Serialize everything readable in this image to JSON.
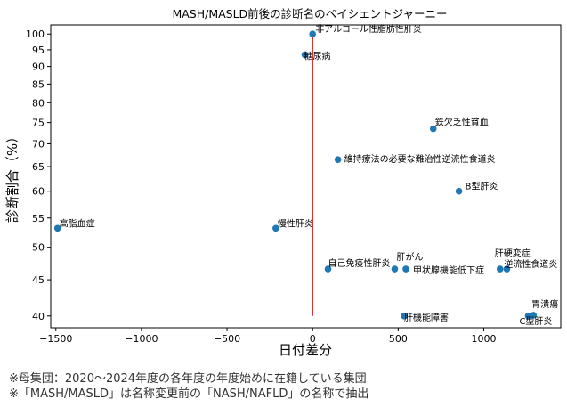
{
  "chart_data": {
    "type": "scatter",
    "title": "MASH/MASLD前後の診断名のペイシェントジャーニー",
    "xlabel": "日付差分",
    "ylabel": "診断割合（%）",
    "xlim": [
      -1530,
      1450
    ],
    "ylim": [
      38.5,
      103
    ],
    "y_scale": "log",
    "xticks": [
      -1500,
      -1000,
      -500,
      0,
      500,
      1000
    ],
    "yticks": [
      40,
      45,
      50,
      55,
      60,
      65,
      70,
      75,
      80,
      85,
      90,
      95,
      100
    ],
    "reference_line": {
      "x": 0,
      "y_from": 40,
      "y_to": 100,
      "color": "#d62728"
    },
    "grid": false,
    "point_color": "#1f77b4",
    "points": [
      {
        "label": "非アルコール性脂肪性肝炎",
        "x": 0,
        "y": 100
      },
      {
        "label": "糖尿病",
        "x": -45,
        "y": 93.5
      },
      {
        "label": "鉄欠乏性貧血",
        "x": 705,
        "y": 73.5
      },
      {
        "label": "維持療法の必要な難治性逆流性食道炎",
        "x": 148,
        "y": 66.5
      },
      {
        "label": "B型肝炎",
        "x": 855,
        "y": 60
      },
      {
        "label": "高脂血症",
        "x": -1490,
        "y": 53.2
      },
      {
        "label": "慢性肝炎",
        "x": -215,
        "y": 53.2
      },
      {
        "label": "自己免疫性肝炎",
        "x": 90,
        "y": 46.6
      },
      {
        "label": "肝がん",
        "x": 480,
        "y": 46.6
      },
      {
        "label": "甲状腺機能低下症",
        "x": 545,
        "y": 46.6
      },
      {
        "label": "肝硬変症",
        "x": 1095,
        "y": 46.6
      },
      {
        "label": "逆流性食道炎",
        "x": 1135,
        "y": 46.6
      },
      {
        "label": "胃潰瘍",
        "x": 1290,
        "y": 40.1
      },
      {
        "label": "C型肝炎",
        "x": 1260,
        "y": 40
      },
      {
        "label": "肝機能障害",
        "x": 535,
        "y": 40
      }
    ]
  },
  "notes": [
    "※母集団：2020～2024年度の各年度の年度始めに在籍している集団",
    "※「MASH/MASLD」は名称変更前の「NASH/NAFLD」の名称で抽出"
  ]
}
